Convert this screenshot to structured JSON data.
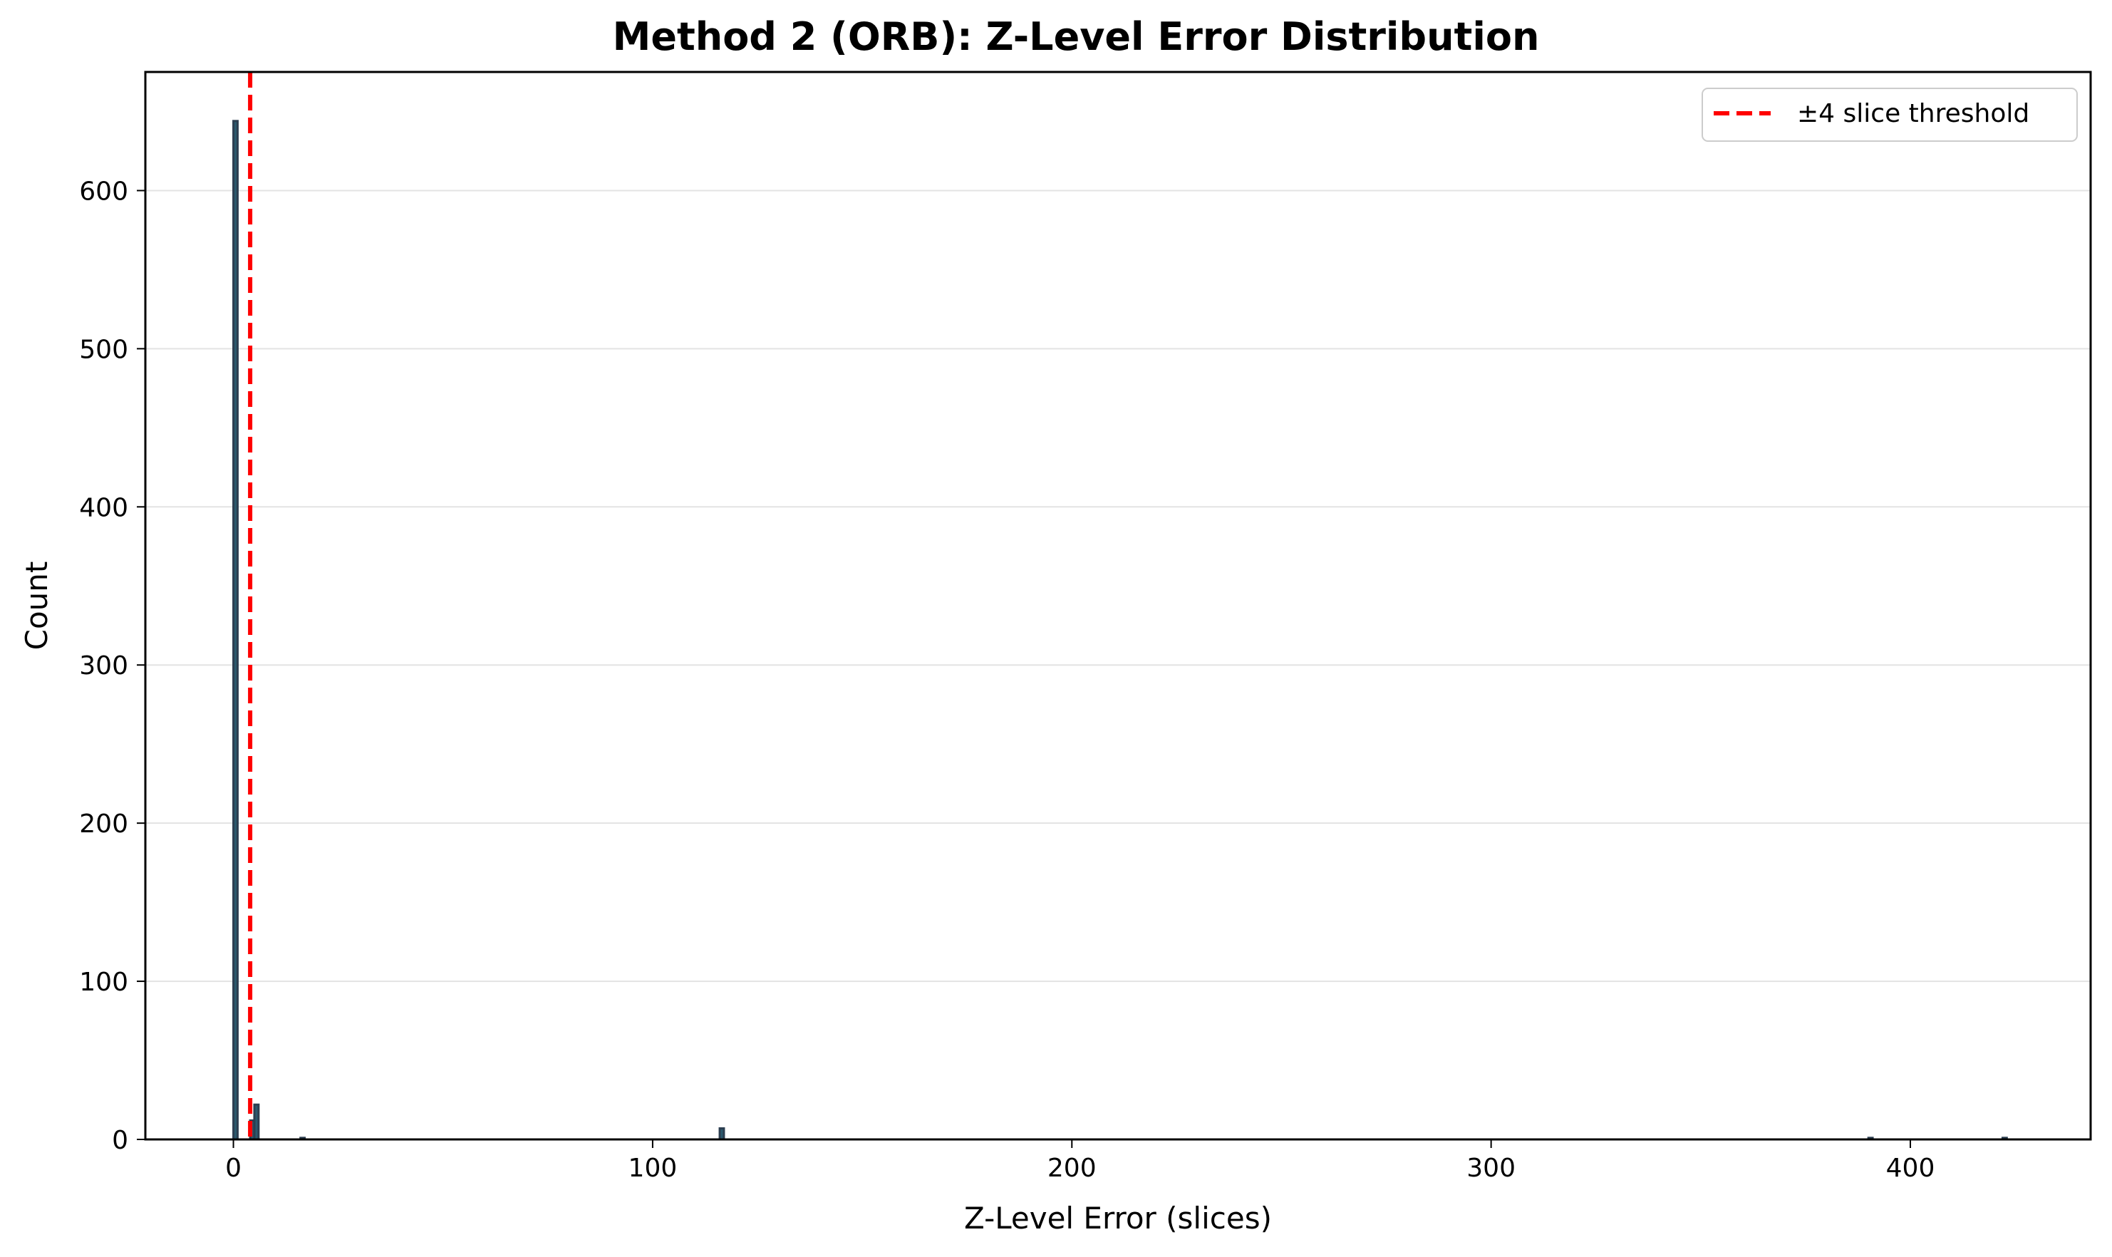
{
  "chart_data": {
    "type": "bar",
    "title": "Method 2 (ORB): Z-Level Error Distribution",
    "xlabel": "Z-Level Error (slices)",
    "ylabel": "Count",
    "xlim": [
      -21,
      443
    ],
    "ylim": [
      0,
      675
    ],
    "xticks": [
      0,
      100,
      200,
      300,
      400
    ],
    "yticks": [
      0,
      100,
      200,
      300,
      400,
      500,
      600
    ],
    "grid": "y",
    "bin_width": 1,
    "bar_color": "#2c5a6e",
    "bar_edge_color": "#2c3e50",
    "bins": [
      {
        "x": 0,
        "count": 644
      },
      {
        "x": 4,
        "count": 12
      },
      {
        "x": 5,
        "count": 22
      },
      {
        "x": 16,
        "count": 1
      },
      {
        "x": 116,
        "count": 7
      },
      {
        "x": 390,
        "count": 1
      },
      {
        "x": 422,
        "count": 1
      }
    ],
    "threshold_line": {
      "x": 4,
      "color": "#ff0000",
      "style": "dashed"
    },
    "legend": {
      "position": "top-right",
      "entries": [
        {
          "label": "±4 slice threshold",
          "color": "#ff0000",
          "style": "dashed"
        }
      ]
    }
  }
}
